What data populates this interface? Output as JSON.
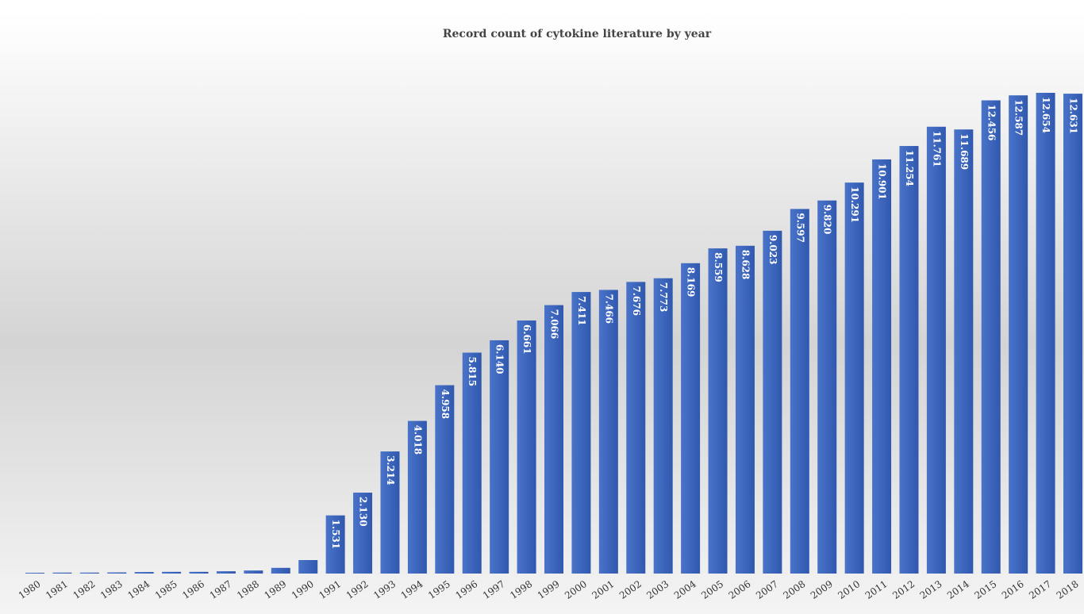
{
  "chart_data": {
    "type": "bar",
    "title": "Record count of cytokine literature by year",
    "categories": [
      "1980",
      "1981",
      "1982",
      "1983",
      "1984",
      "1985",
      "1986",
      "1987",
      "1988",
      "1989",
      "1990",
      "1991",
      "1992",
      "1993",
      "1994",
      "1995",
      "1996",
      "1997",
      "1998",
      "1999",
      "2000",
      "2001",
      "2002",
      "2003",
      "2004",
      "2005",
      "2006",
      "2007",
      "2008",
      "2009",
      "2010",
      "2011",
      "2012",
      "2013",
      "2014",
      "2015",
      "2016",
      "2017",
      "2018"
    ],
    "values": [
      20,
      25,
      25,
      30,
      40,
      45,
      45,
      60,
      80,
      150,
      355,
      1531,
      2130,
      3214,
      4018,
      4958,
      5815,
      6140,
      6661,
      7066,
      7411,
      7466,
      7676,
      7773,
      8169,
      8559,
      8628,
      9023,
      9597,
      9820,
      10291,
      10901,
      11254,
      11761,
      11689,
      12456,
      12587,
      12654,
      12631
    ],
    "value_labels": [
      null,
      null,
      null,
      null,
      null,
      null,
      null,
      null,
      null,
      null,
      null,
      "1.531",
      "2.130",
      "3.214",
      "4.018",
      "4.958",
      "5.815",
      "6.140",
      "6.661",
      "7.066",
      "7.411",
      "7.466",
      "7.676",
      "7.773",
      "8.169",
      "8.559",
      "8.628",
      "9.023",
      "9.597",
      "9.820",
      "10.291",
      "10.901",
      "11.254",
      "11.761",
      "11.689",
      "12.456",
      "12.587",
      "12.654",
      "12.631"
    ],
    "color": "#3c67be"
  }
}
